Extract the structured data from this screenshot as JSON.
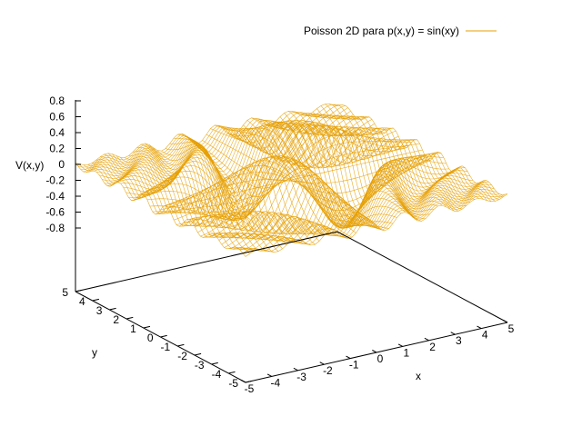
{
  "chart_data": {
    "type": "surface3d",
    "legend": {
      "label": "Poisson 2D para p(x,y) = sin(xy)",
      "position": "top-right"
    },
    "xlabel": "x",
    "ylabel": "y",
    "zlabel": "V(x,y)",
    "xlim": [
      -5,
      5
    ],
    "ylim": [
      -5,
      5
    ],
    "zlim": [
      -0.8,
      0.8
    ],
    "xticks": [
      "-5",
      "-4",
      "-3",
      "-2",
      "-1",
      "0",
      "1",
      "2",
      "3",
      "4",
      "5"
    ],
    "yticks": [
      "-5",
      "-4",
      "-3",
      "-2",
      "-1",
      "0",
      "1",
      "2",
      "3",
      "4",
      "5"
    ],
    "zticks": [
      "0.8",
      "0.6",
      "0.4",
      "0.2",
      "0",
      "-0.2",
      "-0.4",
      "-0.6",
      "-0.8"
    ],
    "series": [
      {
        "name": "Poisson 2D para p(x,y) = sin(xy)",
        "color": "#e69f00",
        "style": "mesh"
      }
    ],
    "grid": false
  }
}
